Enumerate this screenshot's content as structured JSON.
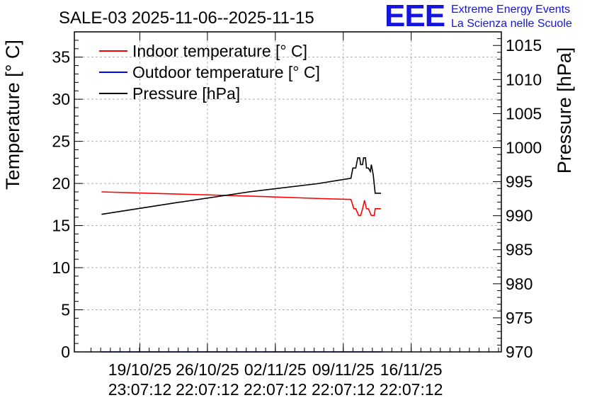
{
  "chart_data": {
    "type": "line",
    "title": "SALE-03 2025-11-06--2025-11-15",
    "ylabel_left": "Temperature [° C]",
    "ylabel_right": "Pressure [hPa]",
    "y_left_range": [
      0,
      38
    ],
    "y_left_ticks": [
      "0",
      "5",
      "10",
      "15",
      "20",
      "25",
      "30",
      "35"
    ],
    "y_right_range": [
      970,
      1017
    ],
    "y_right_ticks": [
      "970",
      "975",
      "980",
      "985",
      "990",
      "995",
      "1000",
      "1005",
      "1010",
      "1015"
    ],
    "x_range_days": [
      0,
      44
    ],
    "x_ticks": [
      {
        "day": 6.75,
        "date": "19/10/25",
        "time": "23:07:12"
      },
      {
        "day": 13.71,
        "date": "26/10/25",
        "time": "22:07:12"
      },
      {
        "day": 20.71,
        "date": "02/11/25",
        "time": "22:07:12"
      },
      {
        "day": 27.71,
        "date": "09/11/25",
        "time": "22:07:12"
      },
      {
        "day": 34.71,
        "date": "16/11/25",
        "time": "22:07:12"
      }
    ],
    "grid": true,
    "legend_position": "top-left",
    "series": [
      {
        "name": "Indoor temperature [° C]",
        "color": "#ff0000",
        "axis": "left",
        "x": [
          2.8,
          9.0,
          18.0,
          25.5,
          28.5,
          28.8,
          29.0,
          29.3,
          29.5,
          29.7,
          29.9,
          30.1,
          30.3,
          30.6,
          30.9,
          31.0,
          31.3,
          31.6
        ],
        "y": [
          19.0,
          18.8,
          18.5,
          18.2,
          18.1,
          17.0,
          17.0,
          16.2,
          16.2,
          17.0,
          18.0,
          17.0,
          17.0,
          16.2,
          16.2,
          17.0,
          17.0,
          17.0
        ]
      },
      {
        "name": "Outdoor temperature [° C]",
        "color": "#0000ff",
        "axis": "left",
        "x": [
          2.8,
          31.6
        ],
        "y": [
          0.0,
          0.0
        ]
      },
      {
        "name": "Pressure [hPa]",
        "color": "#000000",
        "axis": "right",
        "x": [
          2.8,
          10.0,
          18.0,
          25.0,
          28.5,
          28.7,
          29.0,
          29.2,
          29.4,
          29.5,
          29.7,
          29.8,
          30.0,
          30.1,
          30.3,
          30.5,
          30.6,
          30.8,
          31.0,
          31.2,
          31.6
        ],
        "y": [
          990.2,
          991.8,
          993.5,
          994.7,
          995.5,
          997.0,
          997.0,
          998.5,
          998.5,
          997.5,
          997.5,
          998.5,
          998.5,
          997.0,
          997.0,
          996.5,
          997.5,
          996.0,
          993.3,
          993.3,
          993.3
        ]
      }
    ]
  },
  "logo": {
    "mark": "EEE",
    "line1": "Extreme Energy Events",
    "line2": "La Scienza nelle Scuole"
  }
}
